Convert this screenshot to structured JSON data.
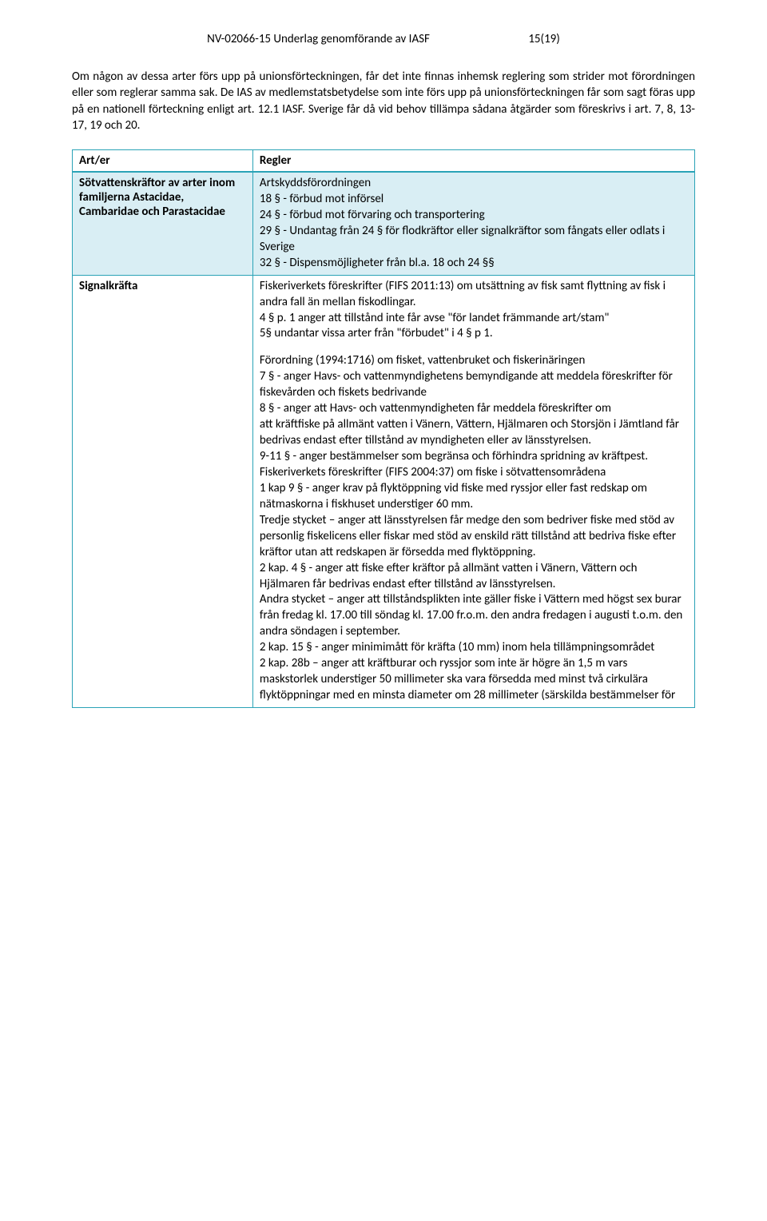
{
  "header": {
    "title": "NV-02066-15 Underlag genomförande av IASF",
    "page": "15(19)"
  },
  "intro": "Om någon av dessa arter förs upp på unionsförteckningen, får det inte finnas inhemsk reglering som strider mot förordningen eller som reglerar samma sak. De IAS av medlemstatsbetydelse som inte förs upp på unionsförteckningen får som sagt föras upp på en nationell förteckning enligt art. 12.1 IASF. Sverige får då vid behov tillämpa sådana åtgärder som föreskrivs i art. 7, 8, 13-17, 19 och 20.",
  "table": {
    "head_art": "Art/er",
    "head_reg": "Regler",
    "row1": {
      "art": "Sötvattenskräftor av arter inom familjerna Astacidae, Cambaridae och Parastacidae",
      "reg_l1": "Artskyddsförordningen",
      "reg_l2": "18 § - förbud mot införsel",
      "reg_l3": "24 § - förbud mot förvaring och transportering",
      "reg_l4": "29 § - Undantag från 24 § för flodkräftor eller signalkräftor som fångats eller odlats i Sverige",
      "reg_l5": "32 § - Dispensmöjligheter från bl.a. 18 och 24 §§"
    },
    "row2": {
      "art": "Signalkräfta",
      "b1_l1": "Fiskeriverkets föreskrifter (FIFS 2011:13) om utsättning av fisk samt flyttning av fisk i andra fall än mellan fiskodlingar.",
      "b1_l2": "4 § p. 1 anger att tillstånd inte får avse \"för landet främmande art/stam\"",
      "b1_l3": "5§ undantar vissa arter från \"förbudet\" i 4 § p 1.",
      "b2_l1": "Förordning (1994:1716) om fisket, vattenbruket och fiskerinäringen",
      "b2_l2": "7 § - anger Havs- och vattenmyndighetens bemyndigande att meddela föreskrifter för fiskevården och fiskets bedrivande",
      "b2_l3": "8 § - anger att Havs- och vattenmyndigheten får meddela föreskrifter om",
      "b2_l4": "att kräftfiske på allmänt vatten i Vänern, Vättern, Hjälmaren och Storsjön i Jämtland får bedrivas endast efter tillstånd av myndigheten eller av länsstyrelsen.",
      "b2_l5": "9-11 § - anger bestämmelser som begränsa och förhindra spridning av kräftpest.",
      "b2_l6": "Fiskeriverkets föreskrifter (FIFS 2004:37) om fiske i sötvattensområdena",
      "b2_l7": "1 kap 9 § - anger krav på flyktöppning vid fiske med ryssjor eller fast redskap om nätmaskorna i fiskhuset understiger 60 mm.",
      "b2_l8": "Tredje stycket – anger att länsstyrelsen får medge den som bedriver fiske med stöd av personlig fiskelicens eller fiskar med stöd av enskild rätt tillstånd att bedriva fiske efter kräftor utan att redskapen är försedda med flyktöppning.",
      "b2_l9": "2 kap. 4 § - anger att fiske efter kräftor på allmänt vatten i Vänern, Vättern och Hjälmaren får bedrivas endast efter tillstånd av länsstyrelsen.",
      "b2_l10": "Andra stycket – anger att tillståndsplikten inte gäller fiske i Vättern med högst sex burar från fredag kl. 17.00 till söndag kl. 17.00 fr.o.m. den andra fredagen i augusti t.o.m. den andra söndagen i september.",
      "b2_l11": "2 kap. 15 § - anger minimimått för kräfta (10 mm) inom hela tillämpningsområdet",
      "b2_l12": "2 kap. 28b – anger att kräftburar och ryssjor som inte är högre än 1,5 m vars maskstorlek understiger 50 millimeter ska vara försedda med minst två cirkulära flyktöppningar med en minsta diameter om 28 millimeter (särskilda bestämmelser för"
    }
  }
}
